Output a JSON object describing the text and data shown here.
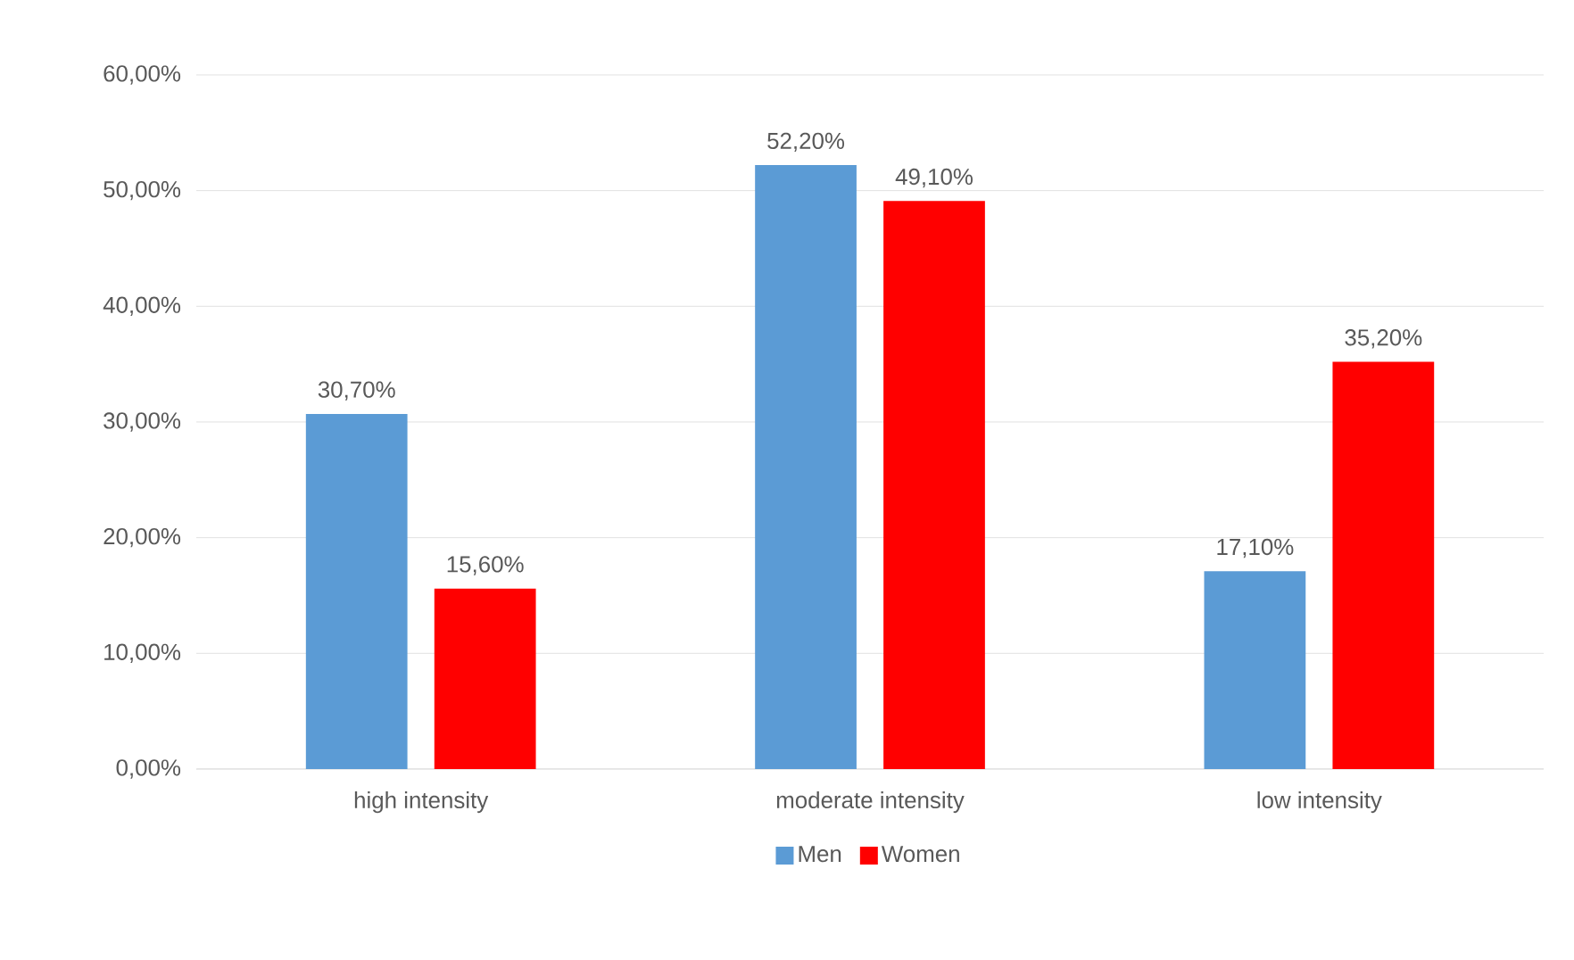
{
  "chart_data": {
    "type": "bar",
    "categories": [
      "high intensity",
      "moderate intensity",
      "low intensity"
    ],
    "series": [
      {
        "name": "Men",
        "color": "#5b9bd5",
        "values": [
          30.7,
          52.2,
          17.1
        ],
        "value_labels": [
          "30,70%",
          "52,20%",
          "17,10%"
        ]
      },
      {
        "name": "Women",
        "color": "#ff0000",
        "values": [
          15.6,
          49.1,
          35.2
        ],
        "value_labels": [
          "15,60%",
          "49,10%",
          "35,20%"
        ]
      }
    ],
    "ylim": [
      0,
      60
    ],
    "yticks": [
      {
        "value": 0,
        "label": "0,00%"
      },
      {
        "value": 10,
        "label": "10,00%"
      },
      {
        "value": 20,
        "label": "20,00%"
      },
      {
        "value": 30,
        "label": "30,00%"
      },
      {
        "value": 40,
        "label": "40,00%"
      },
      {
        "value": 50,
        "label": "50,00%"
      },
      {
        "value": 60,
        "label": "60,00%"
      }
    ],
    "grid": "y",
    "legend": "bottom"
  }
}
